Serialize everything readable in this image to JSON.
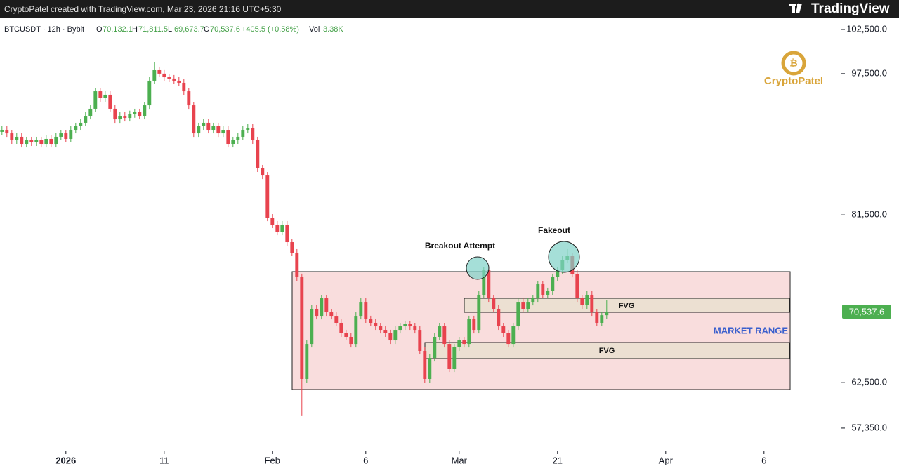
{
  "header": {
    "credit": "CryptoPatel created with TradingView.com, Mar 23, 2026 21:16 UTC+5:30",
    "brand": "TradingView"
  },
  "chart_data": {
    "type": "candlestick",
    "legend": {
      "symbol": "BTCUSDT · 12h · Bybit",
      "items": [
        {
          "key": "O",
          "value": "70,132.1"
        },
        {
          "key": "H",
          "value": "71,811.5"
        },
        {
          "key": "L",
          "value": "69,673.7"
        },
        {
          "key": "C",
          "value": "70,537.6"
        }
      ],
      "change": "+405.5 (+0.58%)",
      "volume_key": "Vol",
      "volume": "3.38K"
    },
    "watermark": "CryptoPatel",
    "up_color": "#4caf50",
    "down_color": "#e8434e",
    "candles": [
      [
        90900,
        91530,
        90500,
        91130
      ],
      [
        91130,
        91530,
        90330,
        90730
      ],
      [
        90730,
        91130,
        89540,
        89940
      ],
      [
        89940,
        90740,
        89540,
        90340
      ],
      [
        90340,
        90740,
        89140,
        89540
      ],
      [
        89540,
        90340,
        89140,
        89940
      ],
      [
        89940,
        90340,
        89300,
        89700
      ],
      [
        89700,
        90340,
        89300,
        89940
      ],
      [
        89940,
        90340,
        89140,
        89540
      ],
      [
        89540,
        90500,
        89140,
        90100
      ],
      [
        90100,
        90500,
        89140,
        89540
      ],
      [
        89540,
        90740,
        89140,
        90340
      ],
      [
        90340,
        91130,
        89940,
        90730
      ],
      [
        90730,
        91130,
        89700,
        90100
      ],
      [
        90100,
        91530,
        89700,
        91130
      ],
      [
        91130,
        91930,
        90730,
        91530
      ],
      [
        91530,
        92330,
        91130,
        91930
      ],
      [
        91930,
        93120,
        91530,
        92720
      ],
      [
        92720,
        93920,
        92320,
        93520
      ],
      [
        93520,
        95900,
        93120,
        95500
      ],
      [
        95500,
        95900,
        94310,
        94710
      ],
      [
        94710,
        95510,
        94310,
        95110
      ],
      [
        95110,
        95510,
        93120,
        93520
      ],
      [
        93520,
        93920,
        91920,
        92320
      ],
      [
        92320,
        93120,
        91920,
        92720
      ],
      [
        92720,
        93120,
        92080,
        92480
      ],
      [
        92480,
        93300,
        92080,
        92900
      ],
      [
        92900,
        93520,
        92500,
        93120
      ],
      [
        93120,
        93520,
        92320,
        92720
      ],
      [
        92720,
        94310,
        92320,
        93910
      ],
      [
        93910,
        97100,
        93510,
        96700
      ],
      [
        96700,
        98840,
        96300,
        97890
      ],
      [
        97890,
        98290,
        97100,
        97500
      ],
      [
        97500,
        97900,
        96690,
        97090
      ],
      [
        97090,
        97490,
        96540,
        96940
      ],
      [
        96940,
        97340,
        96300,
        96700
      ],
      [
        96700,
        97100,
        96060,
        96460
      ],
      [
        96460,
        96860,
        95100,
        95500
      ],
      [
        95500,
        95900,
        93510,
        93910
      ],
      [
        93910,
        94310,
        90330,
        90730
      ],
      [
        90730,
        91930,
        90330,
        91530
      ],
      [
        91530,
        92330,
        91130,
        91930
      ],
      [
        91930,
        92330,
        90730,
        91130
      ],
      [
        91130,
        91930,
        90730,
        91530
      ],
      [
        91530,
        91930,
        90330,
        90730
      ],
      [
        90730,
        91530,
        90330,
        91130
      ],
      [
        91130,
        91530,
        89140,
        89540
      ],
      [
        89540,
        90340,
        89140,
        89940
      ],
      [
        89940,
        90740,
        89540,
        90340
      ],
      [
        90340,
        91530,
        89940,
        91130
      ],
      [
        91130,
        91770,
        90730,
        91370
      ],
      [
        91370,
        91770,
        89540,
        89940
      ],
      [
        89940,
        90340,
        86360,
        86760
      ],
      [
        86760,
        87160,
        85560,
        85960
      ],
      [
        85960,
        86360,
        80790,
        81190
      ],
      [
        81190,
        81590,
        80000,
        80400
      ],
      [
        80400,
        80800,
        79200,
        79600
      ],
      [
        79600,
        80800,
        79200,
        80400
      ],
      [
        80400,
        80800,
        78010,
        78410
      ],
      [
        78410,
        78810,
        76820,
        77220
      ],
      [
        77220,
        77620,
        74040,
        74440
      ],
      [
        74440,
        74840,
        58780,
        62910
      ],
      [
        62910,
        67280,
        62510,
        66880
      ],
      [
        66880,
        71260,
        66480,
        70860
      ],
      [
        70860,
        71260,
        69660,
        70060
      ],
      [
        70060,
        72450,
        69660,
        72050
      ],
      [
        72050,
        72450,
        70060,
        70460
      ],
      [
        70460,
        70860,
        69660,
        70060
      ],
      [
        70060,
        70460,
        68870,
        69270
      ],
      [
        69270,
        69670,
        67680,
        68080
      ],
      [
        68080,
        68480,
        67280,
        67680
      ],
      [
        67680,
        68080,
        66480,
        66880
      ],
      [
        66880,
        70460,
        66480,
        70060
      ],
      [
        70060,
        72050,
        69660,
        71650
      ],
      [
        71650,
        72050,
        69270,
        69670
      ],
      [
        69670,
        70070,
        68870,
        69270
      ],
      [
        69270,
        69670,
        68470,
        68870
      ],
      [
        68870,
        69270,
        68070,
        68470
      ],
      [
        68470,
        68870,
        67680,
        68080
      ],
      [
        68080,
        68480,
        66880,
        67280
      ],
      [
        67280,
        68870,
        66880,
        68470
      ],
      [
        68470,
        69270,
        68070,
        68870
      ],
      [
        68870,
        69510,
        68470,
        69110
      ],
      [
        69110,
        69510,
        68470,
        68870
      ],
      [
        68870,
        69270,
        68070,
        68470
      ],
      [
        68470,
        68870,
        65690,
        66090
      ],
      [
        66090,
        66490,
        62510,
        62910
      ],
      [
        62910,
        65690,
        62510,
        65290
      ],
      [
        65290,
        68080,
        64890,
        67680
      ],
      [
        67680,
        69270,
        67280,
        68870
      ],
      [
        68870,
        69270,
        66480,
        66880
      ],
      [
        66880,
        67280,
        63700,
        64100
      ],
      [
        64100,
        66890,
        63700,
        66490
      ],
      [
        66490,
        67680,
        66090,
        67280
      ],
      [
        67280,
        67680,
        66480,
        66880
      ],
      [
        66880,
        70070,
        66480,
        69670
      ],
      [
        69670,
        70070,
        68070,
        68470
      ],
      [
        68470,
        72850,
        68070,
        72450
      ],
      [
        72450,
        75630,
        72050,
        75230
      ],
      [
        75230,
        75630,
        71650,
        72050
      ],
      [
        72050,
        72450,
        70460,
        70860
      ],
      [
        70860,
        71260,
        68470,
        68870
      ],
      [
        68870,
        69270,
        67680,
        68080
      ],
      [
        68080,
        68480,
        66480,
        66880
      ],
      [
        66880,
        69270,
        66480,
        68870
      ],
      [
        68870,
        72050,
        68470,
        71650
      ],
      [
        71650,
        72050,
        70460,
        70860
      ],
      [
        70860,
        72050,
        70460,
        71650
      ],
      [
        71650,
        72450,
        71250,
        72050
      ],
      [
        72050,
        74040,
        71650,
        73640
      ],
      [
        73640,
        74040,
        72050,
        72450
      ],
      [
        72450,
        73250,
        72050,
        72850
      ],
      [
        72850,
        74840,
        72450,
        74440
      ],
      [
        74440,
        75630,
        74040,
        75230
      ],
      [
        75230,
        76820,
        74830,
        76420
      ],
      [
        76420,
        77620,
        76020,
        76820
      ],
      [
        76820,
        77220,
        74430,
        74830
      ],
      [
        74830,
        75230,
        71650,
        72050
      ],
      [
        72050,
        72450,
        70860,
        71260
      ],
      [
        71260,
        72850,
        70860,
        72450
      ],
      [
        72450,
        72850,
        70060,
        70460
      ],
      [
        70460,
        70860,
        68870,
        69270
      ],
      [
        69270,
        70530,
        68870,
        70132.1
      ],
      [
        70132.1,
        71811.5,
        69673.7,
        70537.6
      ]
    ],
    "xlim": [
      -0.4,
      170.6
    ],
    "xticks": [
      {
        "value": 13,
        "label": "2026"
      },
      {
        "value": 33,
        "label": "11"
      },
      {
        "value": 55,
        "label": "Feb"
      },
      {
        "value": 74,
        "label": "6"
      },
      {
        "value": 93,
        "label": "Mar"
      },
      {
        "value": 113,
        "label": "21"
      },
      {
        "value": 135,
        "label": "Apr"
      },
      {
        "value": 155,
        "label": "6"
      }
    ],
    "ylim": [
      54800,
      103613
    ],
    "yticks": [
      {
        "value": 102500,
        "label": "102,500.0"
      },
      {
        "value": 97500,
        "label": "97,500.0"
      },
      {
        "value": 81500,
        "label": "81,500.0"
      },
      {
        "value": 62500,
        "label": "62,500.0"
      },
      {
        "value": 57350,
        "label": "57,350.0"
      }
    ],
    "last_price": {
      "value": 70537.6,
      "label": "70,537.6",
      "color": "#4caf50"
    },
    "annotations": {
      "breakout": "Breakout Attempt",
      "fakeout": "Fakeout",
      "range": "MARKET RANGE",
      "fvg_upper": "FVG",
      "fvg_lower": "FVG"
    }
  }
}
